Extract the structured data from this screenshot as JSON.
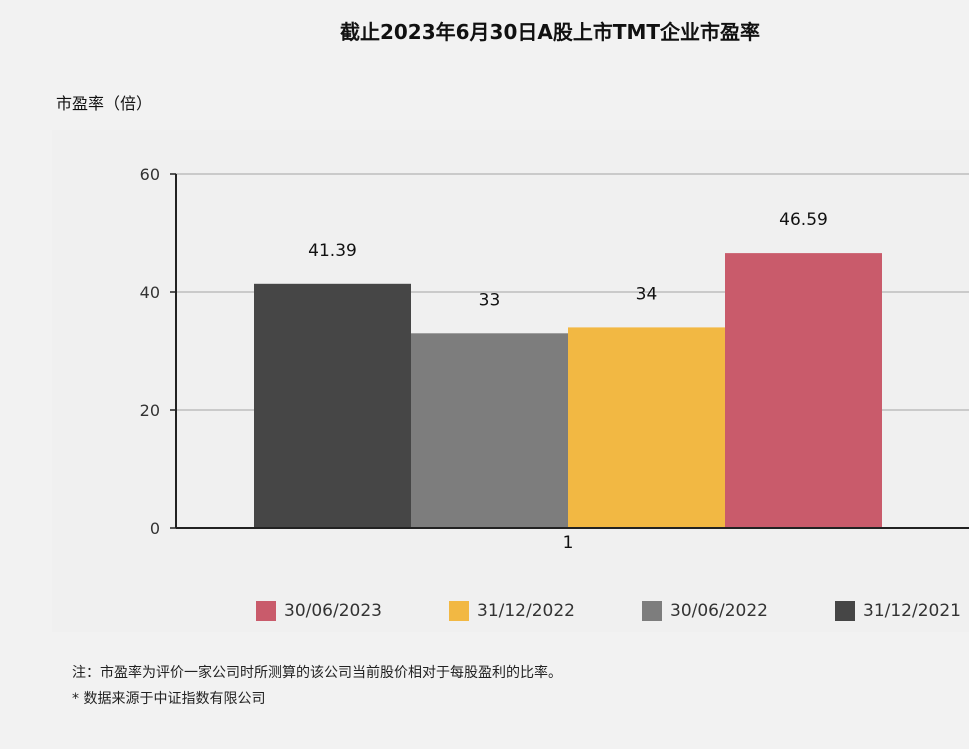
{
  "chart_data": {
    "type": "bar",
    "title": "截止2023年6月30日A股上市TMT企业市盈率",
    "ylabel": "市盈率（倍）",
    "xlabel": "",
    "ylim": [
      0,
      60
    ],
    "yticks": [
      "0",
      "20",
      "40",
      "60"
    ],
    "categories": [
      "1"
    ],
    "grid": true,
    "legend_position": "bottom",
    "series": [
      {
        "name": "31/12/2021",
        "values": [
          41.39
        ],
        "label": "41.39",
        "color": "#464646"
      },
      {
        "name": "30/06/2022",
        "values": [
          33
        ],
        "label": "33",
        "color": "#7d7d7d"
      },
      {
        "name": "31/12/2022",
        "values": [
          34
        ],
        "label": "34",
        "color": "#f2b843"
      },
      {
        "name": "30/06/2023",
        "values": [
          46.59
        ],
        "label": "46.59",
        "color": "#c95b6b"
      }
    ],
    "legend_order": [
      "30/06/2023",
      "31/12/2022",
      "30/06/2022",
      "31/12/2021"
    ]
  },
  "notes": {
    "line1": "注：市盈率为评价一家公司时所测算的该公司当前股价相对于每股盈利的比率。",
    "line2": "* 数据来源于中证指数有限公司"
  }
}
